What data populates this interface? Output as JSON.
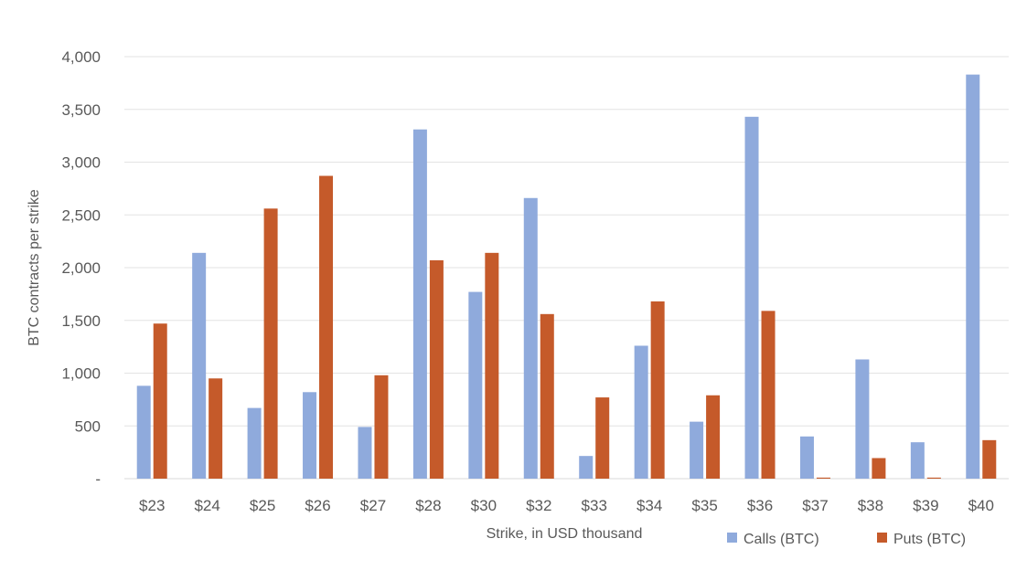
{
  "chart_data": {
    "type": "bar",
    "title": "",
    "xlabel": "Strike, in USD thousand",
    "ylabel": "BTC contracts per strike",
    "ylim": [
      0,
      4000
    ],
    "y_ticks": [
      0,
      500,
      1000,
      1500,
      2000,
      2500,
      3000,
      3500,
      4000
    ],
    "y_tick_labels": [
      "-",
      "500",
      "1,000",
      "1,500",
      "2,000",
      "2,500",
      "3,000",
      "3,500",
      "4,000"
    ],
    "categories": [
      "$23",
      "$24",
      "$25",
      "$26",
      "$27",
      "$28",
      "$30",
      "$32",
      "$33",
      "$34",
      "$35",
      "$36",
      "$37",
      "$38",
      "$39",
      "$40"
    ],
    "series": [
      {
        "name": "Calls (BTC)",
        "color": "#8FAADC",
        "values": [
          880,
          2140,
          670,
          820,
          490,
          3310,
          1770,
          2660,
          215,
          1260,
          540,
          3430,
          400,
          1130,
          345,
          3830
        ]
      },
      {
        "name": "Puts (BTC)",
        "color": "#C55A2A",
        "values": [
          1470,
          950,
          2560,
          2870,
          980,
          2070,
          2140,
          1560,
          770,
          1680,
          790,
          1590,
          10,
          195,
          10,
          365
        ]
      }
    ],
    "grid": true,
    "legend": "bottom-right"
  }
}
